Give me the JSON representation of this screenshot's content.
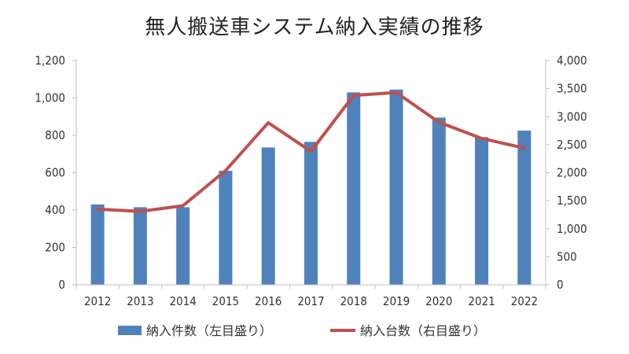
{
  "chart_data": {
    "type": "bar",
    "title": "無人搬送車システム納入実績の推移",
    "categories": [
      "2012",
      "2013",
      "2014",
      "2015",
      "2016",
      "2017",
      "2018",
      "2019",
      "2020",
      "2021",
      "2022"
    ],
    "series": [
      {
        "name": "納入件数（左目盛り）",
        "type": "bar",
        "axis": "left",
        "color": "#4f81bd",
        "values": [
          430,
          415,
          415,
          610,
          735,
          765,
          1030,
          1045,
          895,
          790,
          825
        ]
      },
      {
        "name": "納入台数（右目盛り）",
        "type": "line",
        "axis": "right",
        "color": "#c0504d",
        "values": [
          1350,
          1310,
          1410,
          2040,
          2890,
          2380,
          3380,
          3430,
          2900,
          2610,
          2440
        ]
      }
    ],
    "y_left": {
      "min": 0,
      "max": 1200,
      "ticks": [
        "0",
        "200",
        "400",
        "600",
        "800",
        "1,000",
        "1,200"
      ]
    },
    "y_right": {
      "min": 0,
      "max": 4000,
      "ticks": [
        "0",
        "500",
        "1,000",
        "1,500",
        "2,000",
        "2,500",
        "3,000",
        "3,500",
        "4,000"
      ]
    },
    "legend": "bottom",
    "grid": false
  }
}
